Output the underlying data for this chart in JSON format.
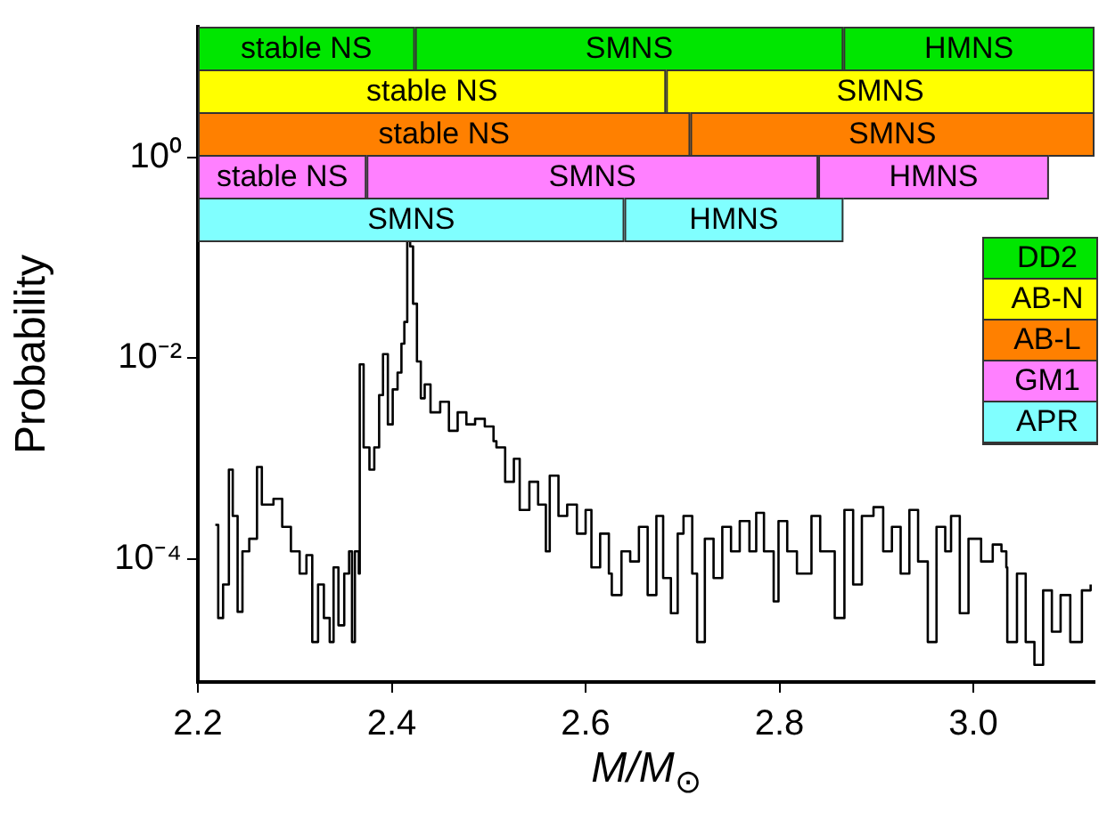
{
  "chart_data": {
    "type": "step",
    "ylabel": "Probability",
    "xlabel": "M/M$_{⊙}$",
    "log": "y",
    "legend": "right",
    "xlim": [
      2.2,
      3.125
    ],
    "xticks": [
      2.2,
      2.4,
      2.6,
      2.8,
      {
        "value": 3,
        "label": "3.0"
      }
    ],
    "ylim": [
      6e-06,
      20
    ],
    "yticks": [
      {
        "value": 1,
        "label": "10⁰"
      },
      {
        "value": 0.01,
        "label": "10⁻²"
      },
      {
        "value": 0.0001,
        "label": "10⁻⁴"
      }
    ],
    "series": [
      {
        "type": "step",
        "color": "#000000",
        "x": [
          2.218,
          2.221,
          2.226,
          2.232,
          2.236,
          2.241,
          2.246,
          2.253,
          2.261,
          2.266,
          2.278,
          2.287,
          2.296,
          2.305,
          2.312,
          2.318,
          2.324,
          2.33,
          2.336,
          2.34,
          2.345,
          2.351,
          2.356,
          2.359,
          2.362,
          2.366,
          2.367,
          2.371,
          2.377,
          2.382,
          2.387,
          2.391,
          2.396,
          2.401,
          2.406,
          2.41,
          2.413,
          2.416,
          2.419,
          2.422,
          2.426,
          2.43,
          2.434,
          2.44,
          2.45,
          2.459,
          2.468,
          2.477,
          2.486,
          2.496,
          2.505,
          2.508,
          2.517,
          2.526,
          2.532,
          2.542,
          2.551,
          2.559,
          2.563,
          2.572,
          2.581,
          2.591,
          2.6,
          2.606,
          2.615,
          2.624,
          2.627,
          2.637,
          2.646,
          2.655,
          2.664,
          2.673,
          2.68,
          2.688,
          2.695,
          2.701,
          2.71,
          2.715,
          2.723,
          2.732,
          2.741,
          2.75,
          2.759,
          2.769,
          2.776,
          2.784,
          2.794,
          2.799,
          2.808,
          2.818,
          2.824,
          2.833,
          2.842,
          2.857,
          2.867,
          2.876,
          2.885,
          2.897,
          2.907,
          2.916,
          2.925,
          2.934,
          2.943,
          2.953,
          2.962,
          2.971,
          2.977,
          2.986,
          2.995,
          3.008,
          3.02,
          3.029,
          3.034,
          3.035,
          3.045,
          3.054,
          3.063,
          3.072,
          3.081,
          3.09,
          3.1,
          3.112,
          3.121
        ],
        "values": [
          0.00022,
          2.6e-05,
          5.6e-05,
          0.00078,
          0.00027,
          3e-05,
          0.00012,
          0.00016,
          0.00083,
          0.00035,
          0.0004,
          0.00021,
          0.00012,
          7.2e-05,
          0.00011,
          1.5e-05,
          5.6e-05,
          2.6e-05,
          1.5e-05,
          8.3e-05,
          2.2e-05,
          7.2e-05,
          0.00012,
          1.5e-05,
          0.00012,
          7.2e-05,
          0.0087,
          0.0013,
          0.00078,
          0.0013,
          0.0043,
          0.011,
          0.0022,
          0.0049,
          0.0072,
          0.014,
          0.023,
          0.15,
          0.13,
          0.035,
          0.0093,
          0.004,
          0.0055,
          0.0029,
          0.0037,
          0.0019,
          0.0029,
          0.0022,
          0.0025,
          0.0021,
          0.0015,
          0.0013,
          0.00059,
          0.001,
          0.00031,
          0.00059,
          0.00035,
          0.00012,
          0.00068,
          0.00027,
          0.00035,
          0.00018,
          0.00031,
          8.3e-05,
          0.00018,
          7.2e-05,
          4.4e-05,
          0.00012,
          9.5e-05,
          0.00021,
          4.4e-05,
          0.00027,
          6.5e-05,
          2.9e-05,
          0.00018,
          0.00027,
          7.2e-05,
          1.5e-05,
          0.00016,
          6.5e-05,
          0.00021,
          0.00012,
          0.00024,
          0.00012,
          0.00029,
          0.00012,
          3.8e-05,
          0.00024,
          0.00012,
          7.2e-05,
          7.2e-05,
          0.00027,
          0.00012,
          2.6e-05,
          0.00031,
          5.6e-05,
          0.00027,
          0.00033,
          0.00012,
          0.00021,
          7.2e-05,
          0.00031,
          9.5e-05,
          1.5e-05,
          0.00021,
          0.00012,
          0.00027,
          2.9e-05,
          0.00016,
          9.5e-05,
          0.00014,
          0.00012,
          8.3e-05,
          1.5e-05,
          7.2e-05,
          1.5e-05,
          8.9e-06,
          4.9e-05,
          1.9e-05,
          4.4e-05,
          1.5e-05,
          4.9e-05,
          5.6e-05
        ]
      },
      {
        "name": "DD2",
        "color": "#00e600"
      },
      {
        "name": "AB-N",
        "color": "#ffff00"
      },
      {
        "name": "AB-L",
        "color": "#ff8000"
      },
      {
        "name": "GM1",
        "color": "#ff80ff"
      },
      {
        "name": "APR",
        "color": "#80ffff"
      }
    ],
    "bands": [
      {
        "axis": "x",
        "from": 2.2,
        "to": 2.424,
        "label": "stable NS",
        "color": "#00e600"
      },
      {
        "axis": "x",
        "from": 2.424,
        "to": 2.866,
        "label": "SMNS",
        "color": "#00e600"
      },
      {
        "axis": "x",
        "from": 2.866,
        "to": 3.125,
        "label": "HMNS",
        "color": "#00e600"
      },
      {
        "axis": "x",
        "from": 2.2,
        "to": 2.683,
        "label": "stable NS",
        "color": "#ffff00"
      },
      {
        "axis": "x",
        "from": 2.683,
        "to": 3.125,
        "label": "SMNS",
        "color": "#ffff00"
      },
      {
        "axis": "x",
        "from": 2.2,
        "to": 2.708,
        "label": "stable NS",
        "color": "#ff8000"
      },
      {
        "axis": "x",
        "from": 2.708,
        "to": 3.125,
        "label": "SMNS",
        "color": "#ff8000"
      },
      {
        "axis": "x",
        "from": 2.2,
        "to": 2.374,
        "label": "stable NS",
        "color": "#ff80ff"
      },
      {
        "axis": "x",
        "from": 2.374,
        "to": 2.84,
        "label": "SMNS",
        "color": "#ff80ff"
      },
      {
        "axis": "x",
        "from": 2.84,
        "to": 3.078,
        "label": "HMNS",
        "color": "#ff80ff"
      },
      {
        "axis": "x",
        "from": 2.2,
        "to": 2.64,
        "label": "SMNS",
        "color": "#80ffff"
      },
      {
        "axis": "x",
        "from": 2.64,
        "to": 2.866,
        "label": "HMNS",
        "color": "#80ffff"
      }
    ]
  }
}
